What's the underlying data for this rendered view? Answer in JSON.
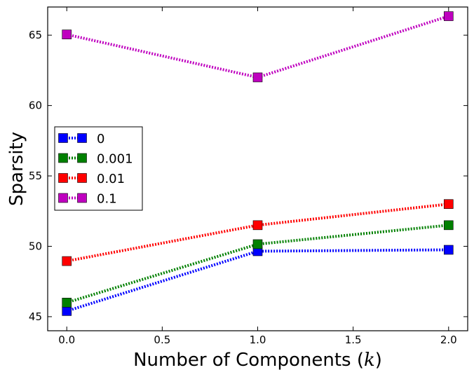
{
  "chart_data": {
    "type": "line",
    "xlabel_prefix": "Number of Components (",
    "xlabel_var": "k",
    "xlabel_suffix": ")",
    "ylabel": "Sparsity",
    "xlim": [
      -0.1,
      2.1
    ],
    "ylim": [
      44,
      67
    ],
    "x_ticks": [
      0.0,
      0.5,
      1.0,
      1.5,
      2.0
    ],
    "x_tick_labels": [
      "0.0",
      "0.5",
      "1.0",
      "1.5",
      "2.0"
    ],
    "y_ticks": [
      45,
      50,
      55,
      60,
      65
    ],
    "y_tick_labels": [
      "45",
      "50",
      "55",
      "60",
      "65"
    ],
    "grid": false,
    "legend_position": "center-left",
    "line_style": "dotted",
    "marker": "square",
    "x": [
      0.0,
      1.0,
      2.0
    ],
    "series": [
      {
        "name": "0",
        "color": "#0000ff",
        "values": [
          45.4,
          49.65,
          49.75
        ]
      },
      {
        "name": "0.001",
        "color": "#008000",
        "values": [
          46.0,
          50.15,
          51.5
        ]
      },
      {
        "name": "0.01",
        "color": "#ff0000",
        "values": [
          48.95,
          51.5,
          53.0
        ]
      },
      {
        "name": "0.1",
        "color": "#bf00bf",
        "values": [
          65.05,
          62.0,
          66.35
        ]
      }
    ]
  }
}
